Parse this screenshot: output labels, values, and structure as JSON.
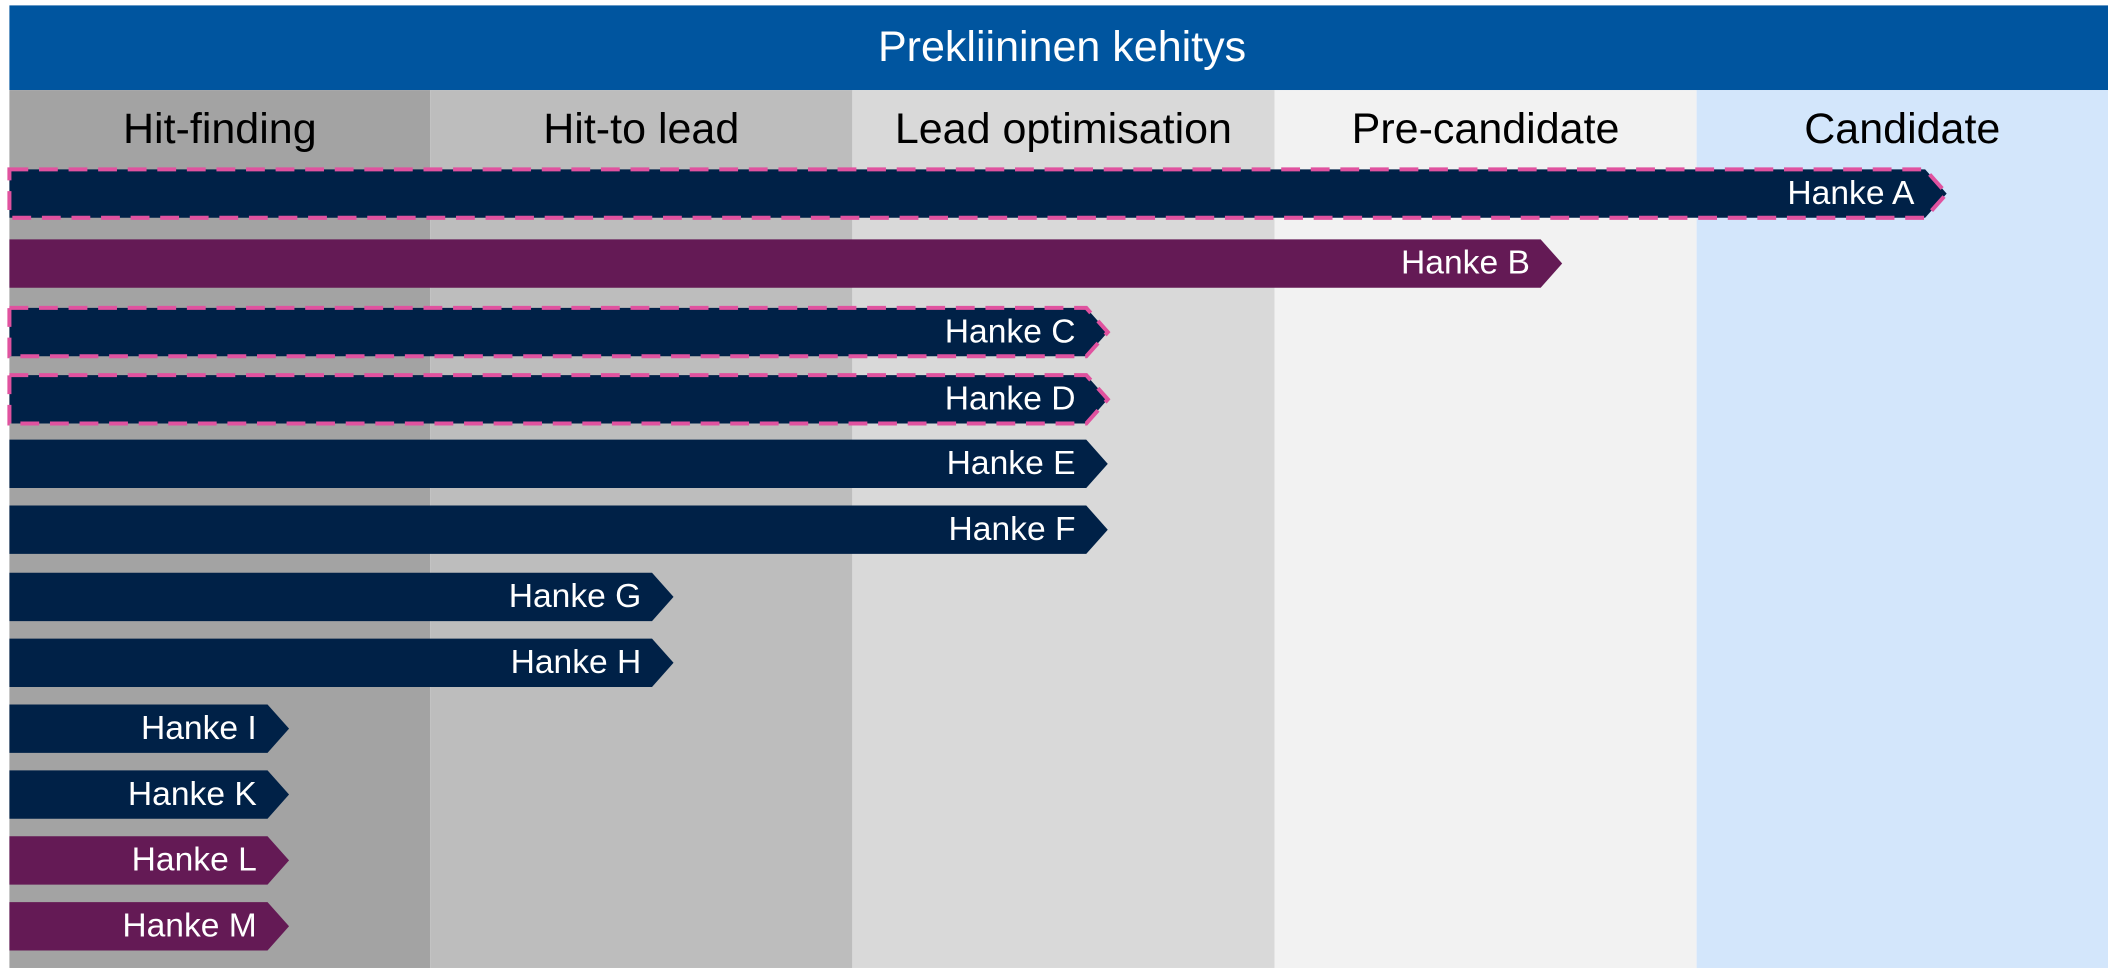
{
  "header": {
    "title": "Prekliininen kehitys"
  },
  "phases": [
    "Hit-finding",
    "Hit-to lead",
    "Lead optimisation",
    "Pre-candidate",
    "Candidate"
  ],
  "projects": [
    {
      "label": "Hanke A",
      "color": "#002147",
      "dashed": true
    },
    {
      "label": "Hanke B",
      "color": "#641a55",
      "dashed": false
    },
    {
      "label": "Hanke C",
      "color": "#002147",
      "dashed": true
    },
    {
      "label": "Hanke D",
      "color": "#002147",
      "dashed": true
    },
    {
      "label": "Hanke E",
      "color": "#002147",
      "dashed": false
    },
    {
      "label": "Hanke F",
      "color": "#002147",
      "dashed": false
    },
    {
      "label": "Hanke G",
      "color": "#002147",
      "dashed": false
    },
    {
      "label": "Hanke H",
      "color": "#002147",
      "dashed": false
    },
    {
      "label": "Hanke I",
      "color": "#002147",
      "dashed": false
    },
    {
      "label": "Hanke K",
      "color": "#002147",
      "dashed": false
    },
    {
      "label": "Hanke L",
      "color": "#641a55",
      "dashed": false
    },
    {
      "label": "Hanke M",
      "color": "#641a55",
      "dashed": false
    }
  ]
}
